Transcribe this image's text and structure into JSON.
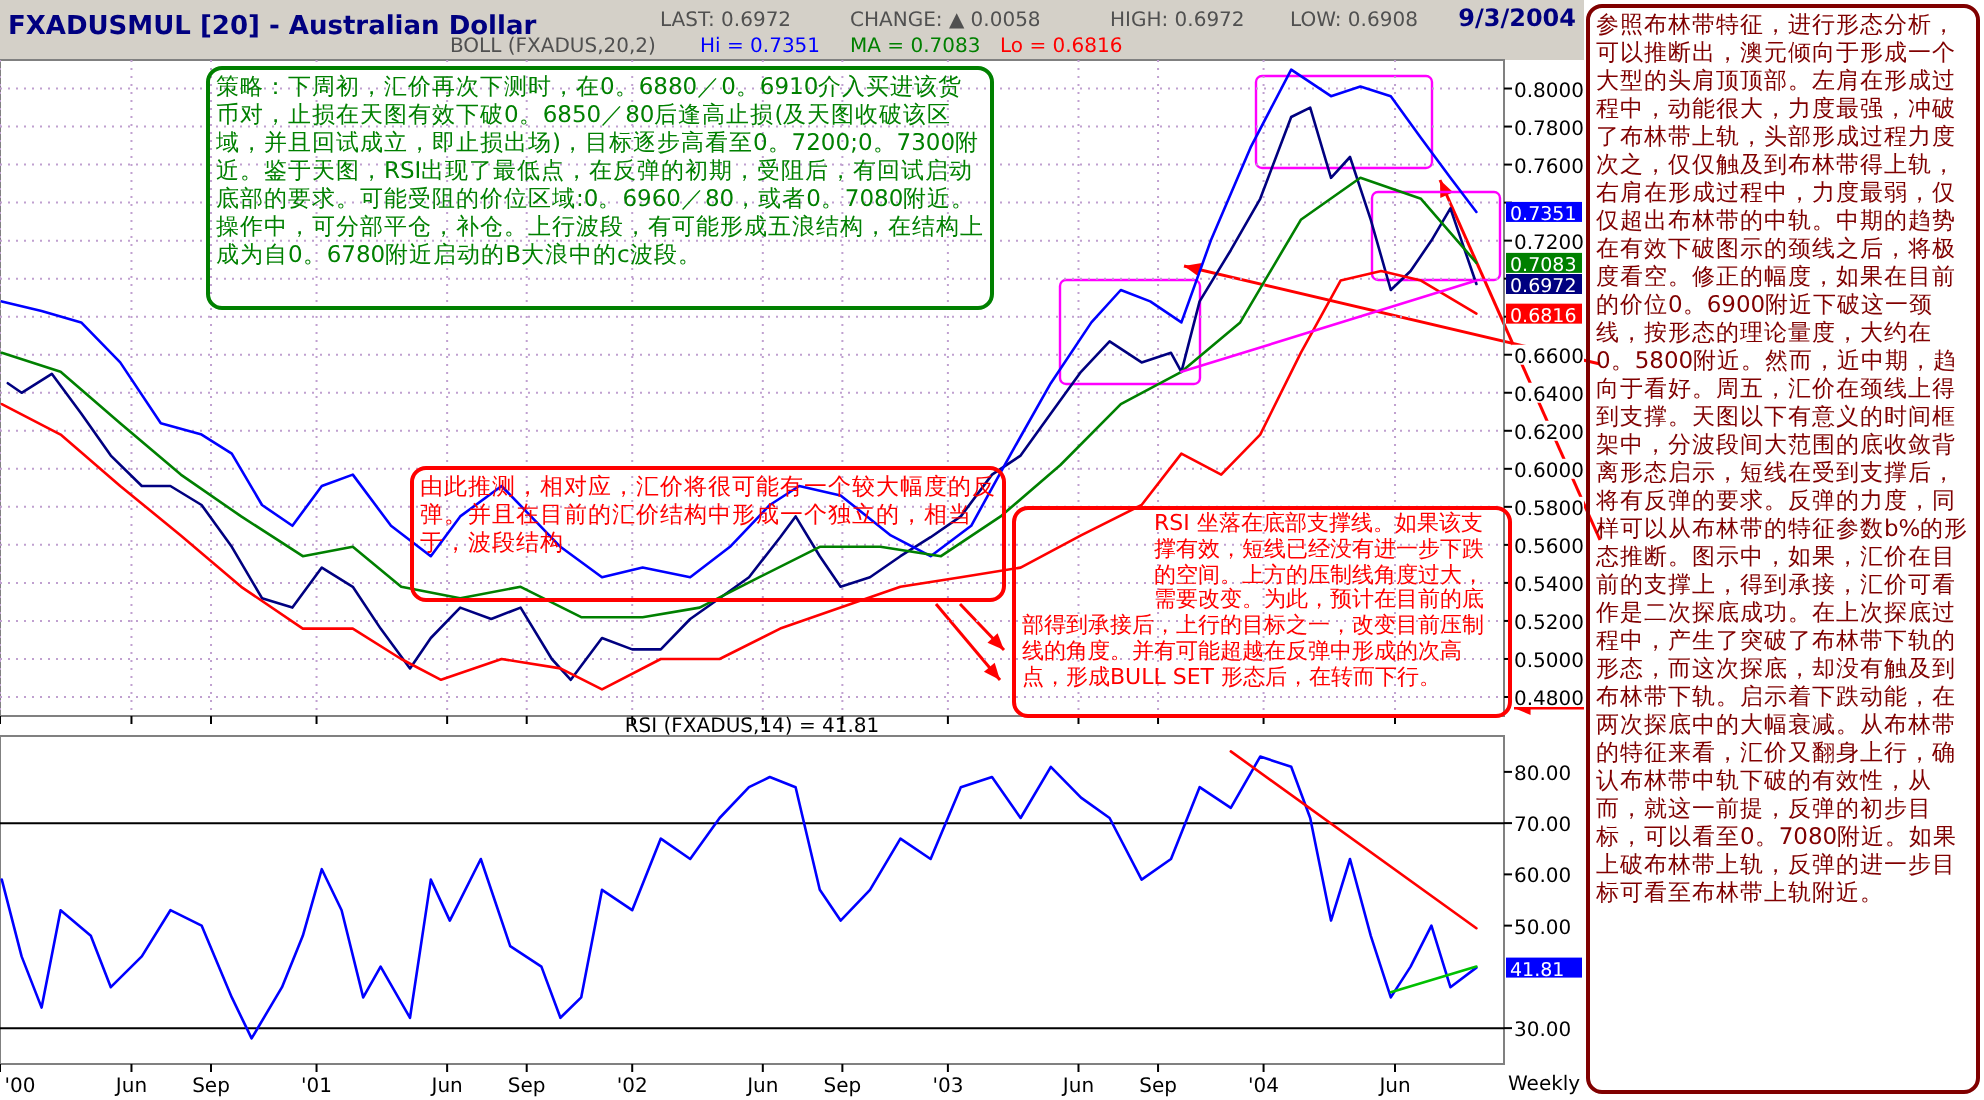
{
  "chart_data": [
    {
      "type": "line",
      "title": "FXADUSMUL [20] - Australian Dollar",
      "annotations": [
        "LAST: 0.6972",
        "CHANGE: ▲ 0.0058",
        "HIGH: 0.6972",
        "LOW: 0.6908",
        "9/3/2004",
        "BOLL (FXADUS,20,2)",
        "Hi = 0.7351",
        "MA = 0.7083",
        "Lo = 0.6816",
        "策略：下周初，汇价再次下测时，在0。6880／0。6910介入买进该货币对，止损在天图有效下破0。6850／80后逢高止损(及天图收破该区域，并且回试成立，即止损出场)，目标逐步高看至0。7200;0。7300附近。鉴于天图，RSI出现了最低点，在反弹的初期，受阻后，有回试启动底部的要求。可能受阻的价位区域:0。6960／80，或者0。7080附近。操作中，可分部平仓，补仓。上行波段，有可能形成五浪结构，在结构上成为自0。6780附近启动的B大浪中的c波段。",
        "由此推测，相对应，汇价将很可能有一个较大幅度的反弹。并且在目前的汇价结构中形成一个独立的，相当于，波段结构",
        "RSI 坐落在底部支撑线。如果该支撑有效，短线已经没有进一步下跌的空间。上方的压制线角度过大，需要改变。为此，预计在目前的底部得到承接后，上行的目标之一，改变目前压制线的角度。并有可能超越在反弹中形成的次高点，形成BULL SET 形态后，在转而下行。",
        "参照布林带特征，进行形态分析，可以推断出，澳元倾向于形成一个大型的头肩顶顶部。左肩在形成过程中，动能很大，力度最强，冲破了布林带上轨，头部形成过程力度次之，仅仅触及到布林带得上轨，右肩在形成过程中，力度最弱，仅仅超出布林带的中轨。中期的趋势在有效下破图示的颈线之后，将极度看空。修正的幅度，如果在目前的价位0。6900附近下破这一颈线，按形态的理论量度，大约在0。5800附近。然而，近中期，趋向于看好。周五，汇价在颈线上得到支撑。天图以下有意义的时间框架中，分波段间大范围的底收敛背离形态启示，短线在受到支撑后，将有反弹的要求。反弹的力度，同样可以从布林带的特征参数b%的形态推断。图示中，如果，汇价在目前的支撑上，得到承接，汇价可看作是二次探底成功。在上次探底过程中，产生了突破了布林带下轨的形态，而这次探底，却没有触及到布林带下轨。启示着下跌动能，在两次探底中的大幅衰减。从布林带的特征来看，汇价又翻身上行，确认布林带中轨下破的有效性，从而，就这一前提，反弹的初步目标，可以看至0。7080附近。如果上破布林带上轨，反弹的进一步目标可看至布林带上轨附近。"
      ],
      "xlim": [
        "2000-01-01",
        "2004-10-05"
      ],
      "xticks": [
        {
          "value": "2000-01-01",
          "label": null
        },
        {
          "value": "2000-06-01",
          "label": null
        },
        {
          "value": "2000-09-01",
          "label": null
        },
        {
          "value": "2001-01-01",
          "label": null
        },
        {
          "value": "2001-06-01",
          "label": null
        },
        {
          "value": "2001-09-01",
          "label": null
        },
        {
          "value": "2002-01-01",
          "label": null
        },
        {
          "value": "2002-06-01",
          "label": null
        },
        {
          "value": "2002-09-01",
          "label": null
        },
        {
          "value": "2003-01-01",
          "label": null
        },
        {
          "value": "2003-06-01",
          "label": null
        },
        {
          "value": "2003-09-01",
          "label": null
        },
        {
          "value": "2004-01-01",
          "label": null
        },
        {
          "value": "2004-06-01",
          "label": null
        }
      ],
      "ylim": [
        0.47,
        0.815
      ],
      "yticks": [
        {
          "value": 0.48,
          "label": "0.4800"
        },
        {
          "value": 0.5,
          "label": "0.5000"
        },
        {
          "value": 0.52,
          "label": "0.5200"
        },
        {
          "value": 0.54,
          "label": "0.5400"
        },
        {
          "value": 0.56,
          "label": "0.5600"
        },
        {
          "value": 0.58,
          "label": "0.5800"
        },
        {
          "value": 0.6,
          "label": "0.6000"
        },
        {
          "value": 0.62,
          "label": "0.6200"
        },
        {
          "value": 0.64,
          "label": "0.6400"
        },
        {
          "value": 0.66,
          "label": "0.6600"
        },
        {
          "value": 0.68,
          "label": null
        },
        {
          "value": 0.7,
          "label": null
        },
        {
          "value": 0.72,
          "label": "0.7200"
        },
        {
          "value": 0.74,
          "label": null
        },
        {
          "value": 0.76,
          "label": "0.7600"
        },
        {
          "value": 0.78,
          "label": "0.7800"
        },
        {
          "value": 0.8,
          "label": "0.8000"
        }
      ],
      "grid": true,
      "tick_labels": "y",
      "series": [
        {
          "color": "#000080",
          "x": [
            "2000-01-10",
            "2000-01-26",
            "2000-03-01",
            "2000-04-04",
            "2000-05-08",
            "2000-06-13",
            "2000-07-16",
            "2000-08-21",
            "2000-09-25",
            "2000-10-30",
            "2000-12-04",
            "2001-01-07",
            "2001-02-12",
            "2001-03-16",
            "2001-04-19",
            "2001-05-13",
            "2001-06-16",
            "2001-07-22",
            "2001-08-25",
            "2001-09-30",
            "2001-10-22",
            "2001-11-27",
            "2002-01-01",
            "2002-02-03",
            "2002-03-09",
            "2002-04-12",
            "2002-05-16",
            "2002-06-21",
            "2002-07-09",
            "2002-08-06",
            "2002-08-30",
            "2002-10-03",
            "2002-11-07",
            "2002-12-12",
            "2003-01-16",
            "2003-02-21",
            "2003-03-26",
            "2003-04-30",
            "2003-06-04",
            "2003-07-07",
            "2003-08-13",
            "2003-09-16",
            "2003-09-28",
            "2003-10-19",
            "2003-11-24",
            "2003-12-28",
            "2004-02-02",
            "2004-02-24",
            "2004-03-19",
            "2004-04-10",
            "2004-05-04",
            "2004-05-27",
            "2004-06-19",
            "2004-07-13",
            "2004-08-04",
            "2004-09-03"
          ],
          "values": [
            0.645,
            0.64,
            0.65,
            0.629,
            0.607,
            0.591,
            0.591,
            0.581,
            0.559,
            0.532,
            0.527,
            0.548,
            0.538,
            0.516,
            0.495,
            0.511,
            0.527,
            0.521,
            0.527,
            0.5,
            0.489,
            0.511,
            0.505,
            0.505,
            0.521,
            0.532,
            0.543,
            0.564,
            0.575,
            0.554,
            0.538,
            0.543,
            0.554,
            0.564,
            0.575,
            0.597,
            0.607,
            0.629,
            0.651,
            0.667,
            0.656,
            0.661,
            0.651,
            0.688,
            0.715,
            0.742,
            0.785,
            0.79,
            0.753,
            0.764,
            0.731,
            0.694,
            0.704,
            0.72,
            0.737,
            0.6972
          ],
          "value_labels": [
            null,
            null,
            null,
            null,
            null,
            null,
            null,
            null,
            null,
            null,
            null,
            null,
            null,
            null,
            null,
            null,
            null,
            null,
            null,
            null,
            null,
            null,
            null,
            null,
            null,
            null,
            null,
            null,
            null,
            null,
            null,
            null,
            null,
            null,
            null,
            null,
            null,
            null,
            null,
            null,
            null,
            null,
            null,
            null,
            null,
            null,
            null,
            null,
            null,
            null,
            null,
            null,
            null,
            null,
            null,
            "0.6972"
          ]
        },
        {
          "color": "#0000ff",
          "x": [
            "2000-01-03",
            "2000-02-18",
            "2000-04-04",
            "2000-05-19",
            "2000-07-05",
            "2000-08-21",
            "2000-09-25",
            "2000-10-30",
            "2000-12-04",
            "2001-01-07",
            "2001-02-12",
            "2001-03-28",
            "2001-05-13",
            "2001-06-16",
            "2001-08-03",
            "2001-09-06",
            "2001-10-10",
            "2001-11-27",
            "2002-01-13",
            "2002-03-09",
            "2002-04-24",
            "2002-06-09",
            "2002-07-13",
            "2002-08-30",
            "2002-10-27",
            "2002-12-12",
            "2003-01-28",
            "2003-03-15",
            "2003-04-30",
            "2003-06-16",
            "2003-07-20",
            "2003-08-23",
            "2003-09-28",
            "2003-11-01",
            "2003-12-17",
            "2004-02-02",
            "2004-03-19",
            "2004-04-22",
            "2004-05-27",
            "2004-07-01",
            "2004-08-04",
            "2004-09-03"
          ],
          "values": [
            0.688,
            0.683,
            0.677,
            0.656,
            0.624,
            0.618,
            0.608,
            0.581,
            0.57,
            0.591,
            0.597,
            0.57,
            0.554,
            0.575,
            0.591,
            0.575,
            0.559,
            0.543,
            0.548,
            0.543,
            0.559,
            0.581,
            0.591,
            0.586,
            0.565,
            0.554,
            0.57,
            0.608,
            0.645,
            0.677,
            0.694,
            0.688,
            0.677,
            0.72,
            0.769,
            0.81,
            0.796,
            0.801,
            0.796,
            0.774,
            0.753,
            0.7351
          ],
          "value_labels": [
            null,
            null,
            null,
            null,
            null,
            null,
            null,
            null,
            null,
            null,
            null,
            null,
            null,
            null,
            null,
            null,
            null,
            null,
            null,
            null,
            null,
            null,
            null,
            null,
            null,
            null,
            null,
            null,
            null,
            null,
            null,
            null,
            null,
            null,
            null,
            null,
            null,
            null,
            null,
            null,
            null,
            "0.7351"
          ]
        },
        {
          "color": "#008000",
          "x": [
            "2000-01-03",
            "2000-03-11",
            "2000-05-19",
            "2000-07-28",
            "2000-10-06",
            "2000-12-16",
            "2001-02-12",
            "2001-04-09",
            "2001-06-16",
            "2001-08-25",
            "2001-11-03",
            "2002-01-13",
            "2002-03-20",
            "2002-05-28",
            "2002-08-06",
            "2002-10-15",
            "2002-12-24",
            "2003-03-03",
            "2003-05-11",
            "2003-07-20",
            "2003-09-28",
            "2003-12-05",
            "2004-02-13",
            "2004-04-22",
            "2004-07-01",
            "2004-09-03"
          ],
          "values": [
            0.661,
            0.651,
            0.624,
            0.597,
            0.575,
            0.554,
            0.559,
            0.538,
            0.532,
            0.538,
            0.522,
            0.522,
            0.527,
            0.543,
            0.559,
            0.559,
            0.554,
            0.575,
            0.602,
            0.634,
            0.651,
            0.677,
            0.731,
            0.753,
            0.742,
            0.7083
          ],
          "value_labels": [
            null,
            null,
            null,
            null,
            null,
            null,
            null,
            null,
            null,
            null,
            null,
            null,
            null,
            null,
            null,
            null,
            null,
            null,
            null,
            null,
            null,
            null,
            null,
            null,
            null,
            "0.7083"
          ]
        },
        {
          "color": "#ff0000",
          "x": [
            "2000-01-03",
            "2000-03-11",
            "2000-05-19",
            "2000-07-28",
            "2000-10-06",
            "2000-12-16",
            "2001-02-12",
            "2001-04-09",
            "2001-05-25",
            "2001-08-03",
            "2001-10-10",
            "2001-11-27",
            "2002-02-03",
            "2002-04-12",
            "2002-06-21",
            "2002-08-30",
            "2002-11-07",
            "2003-01-16",
            "2003-03-26",
            "2003-06-04",
            "2003-08-13",
            "2003-09-28",
            "2003-11-13",
            "2003-12-28",
            "2004-02-13",
            "2004-03-30",
            "2004-05-16",
            "2004-07-01",
            "2004-09-03"
          ],
          "values": [
            0.634,
            0.618,
            0.591,
            0.565,
            0.538,
            0.516,
            0.516,
            0.5,
            0.489,
            0.5,
            0.495,
            0.484,
            0.5,
            0.5,
            0.516,
            0.527,
            0.538,
            0.543,
            0.548,
            0.565,
            0.581,
            0.608,
            0.597,
            0.618,
            0.661,
            0.699,
            0.704,
            0.699,
            0.6816
          ],
          "value_labels": [
            null,
            null,
            null,
            null,
            null,
            null,
            null,
            null,
            null,
            null,
            null,
            null,
            null,
            null,
            null,
            null,
            null,
            null,
            null,
            null,
            null,
            null,
            null,
            null,
            null,
            null,
            null,
            null,
            "0.6816"
          ]
        },
        {
          "color": "#ff00ff",
          "x": [
            "2003-09-28",
            "2004-09-03"
          ],
          "values": [
            0.651,
            0.699
          ]
        }
      ]
    },
    {
      "type": "line",
      "title": "RSI (FXADUS,14) = 41.81",
      "annotations": [
        "Weekly"
      ],
      "xlim": [
        "2000-01-01",
        "2004-10-05"
      ],
      "xticks": [
        {
          "value": "2000-01-01",
          "label": "'00"
        },
        {
          "value": "2000-06-01",
          "label": "Jun"
        },
        {
          "value": "2000-09-01",
          "label": "Sep"
        },
        {
          "value": "2001-01-01",
          "label": "'01"
        },
        {
          "value": "2001-06-01",
          "label": "Jun"
        },
        {
          "value": "2001-09-01",
          "label": "Sep"
        },
        {
          "value": "2002-01-01",
          "label": "'02"
        },
        {
          "value": "2002-06-01",
          "label": "Jun"
        },
        {
          "value": "2002-09-01",
          "label": "Sep"
        },
        {
          "value": "2003-01-01",
          "label": "'03"
        },
        {
          "value": "2003-06-01",
          "label": "Jun"
        },
        {
          "value": "2003-09-01",
          "label": "Sep"
        },
        {
          "value": "2004-01-01",
          "label": "'04"
        },
        {
          "value": "2004-06-01",
          "label": "Jun"
        }
      ],
      "ylim": [
        23,
        87
      ],
      "yticks": [
        {
          "value": 30,
          "label": "30.00"
        },
        {
          "value": 50,
          "label": "50.00"
        },
        {
          "value": 60,
          "label": "60.00"
        },
        {
          "value": 70,
          "label": "70.00"
        },
        {
          "value": 80,
          "label": "80.00"
        }
      ],
      "ref_lines": [
        {
          "axis": "y",
          "value": 70,
          "color": "#000000"
        },
        {
          "axis": "y",
          "value": 30,
          "color": "#000000"
        }
      ],
      "series": [
        {
          "color": "#0000ff",
          "x": [
            "2000-01-03",
            "2000-01-26",
            "2000-02-18",
            "2000-03-11",
            "2000-04-15",
            "2000-05-08",
            "2000-06-13",
            "2000-07-16",
            "2000-08-21",
            "2000-09-25",
            "2000-10-18",
            "2000-11-22",
            "2000-12-16",
            "2001-01-07",
            "2001-01-30",
            "2001-02-24",
            "2001-03-16",
            "2001-04-19",
            "2001-05-13",
            "2001-06-04",
            "2001-07-10",
            "2001-08-13",
            "2001-09-18",
            "2001-10-10",
            "2001-11-03",
            "2001-11-27",
            "2002-01-01",
            "2002-02-03",
            "2002-03-09",
            "2002-04-12",
            "2002-05-16",
            "2002-06-09",
            "2002-07-09",
            "2002-08-06",
            "2002-08-30",
            "2002-10-03",
            "2002-11-07",
            "2002-12-12",
            "2003-01-16",
            "2003-02-21",
            "2003-03-26",
            "2003-04-30",
            "2003-06-04",
            "2003-07-07",
            "2003-08-13",
            "2003-09-16",
            "2003-10-19",
            "2003-11-24",
            "2003-12-28",
            "2004-02-02",
            "2004-02-24",
            "2004-03-19",
            "2004-04-10",
            "2004-05-04",
            "2004-05-27",
            "2004-06-19",
            "2004-07-13",
            "2004-08-04",
            "2004-09-03"
          ],
          "values": [
            59,
            44,
            34,
            53,
            48,
            38,
            44,
            53,
            50,
            36,
            28,
            38,
            48,
            61,
            53,
            36,
            42,
            32,
            59,
            51,
            63,
            46,
            42,
            32,
            36,
            57,
            53,
            67,
            63,
            71,
            77,
            79,
            77,
            57,
            51,
            57,
            67,
            63,
            77,
            79,
            71,
            81,
            75,
            71,
            59,
            63,
            77,
            73,
            83,
            81,
            71,
            51,
            63,
            48,
            36,
            42,
            50,
            38,
            41.81
          ],
          "value_labels": [
            null,
            null,
            null,
            null,
            null,
            null,
            null,
            null,
            null,
            null,
            null,
            null,
            null,
            null,
            null,
            null,
            null,
            null,
            null,
            null,
            null,
            null,
            null,
            null,
            null,
            null,
            null,
            null,
            null,
            null,
            null,
            null,
            null,
            null,
            null,
            null,
            null,
            null,
            null,
            null,
            null,
            null,
            null,
            null,
            null,
            null,
            null,
            null,
            null,
            null,
            null,
            null,
            null,
            null,
            null,
            null,
            null,
            null,
            "41.81"
          ]
        },
        {
          "color": "#ff0000",
          "x": [
            "2003-11-24",
            "2004-09-03"
          ],
          "values": [
            84,
            49.5
          ]
        },
        {
          "color": "#00c000",
          "x": [
            "2004-05-27",
            "2004-09-03"
          ],
          "values": [
            37,
            42
          ]
        }
      ]
    }
  ]
}
